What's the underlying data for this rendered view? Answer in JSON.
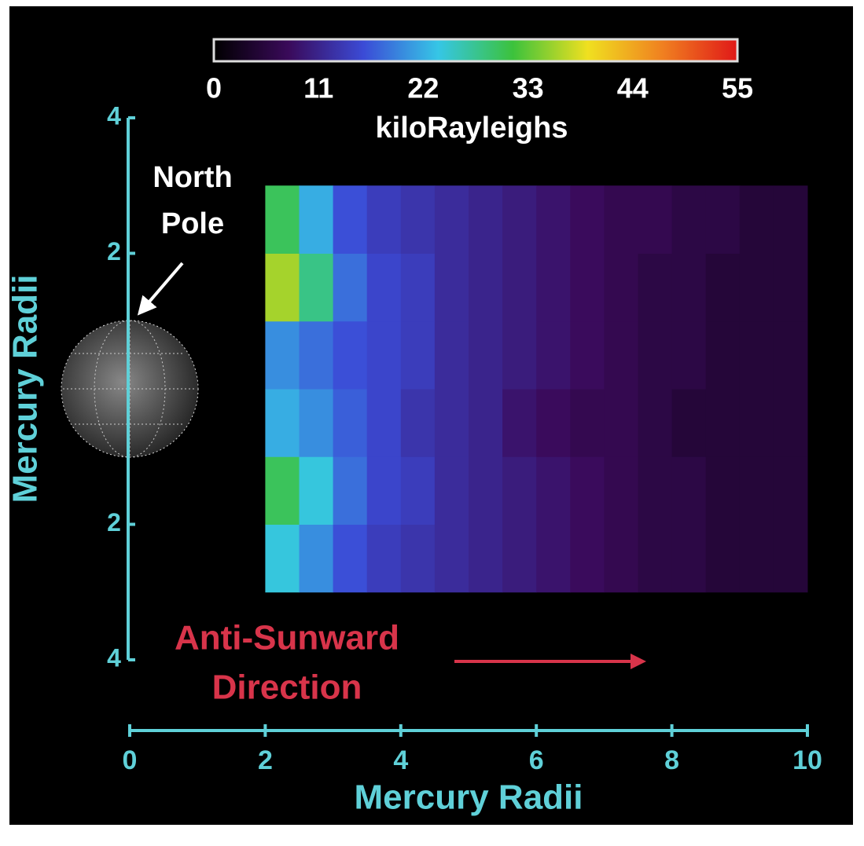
{
  "chart_data": {
    "type": "heatmap",
    "colorbar": {
      "label": "kiloRayleighs",
      "lim": [
        0,
        55
      ],
      "ticks": [
        0,
        11,
        22,
        33,
        44,
        55
      ],
      "colormap": [
        "#000000",
        "#3a0a5a",
        "#3b4bd6",
        "#36c6e6",
        "#3cc23c",
        "#f0e020",
        "#f08020",
        "#e01818"
      ]
    },
    "x_label": "Mercury Radii",
    "y_label": "Mercury Radii",
    "xlim": [
      0,
      10
    ],
    "xticks": [
      0,
      2,
      4,
      6,
      8,
      10
    ],
    "ylim": [
      -4,
      4
    ],
    "yticks": [
      {
        "value": -4,
        "label": "4"
      },
      {
        "value": -2,
        "label": "2"
      },
      2,
      4
    ],
    "x_bins": [
      2,
      2.5,
      3,
      3.5,
      4,
      4.5,
      5,
      5.5,
      6,
      6.5,
      7,
      7.5,
      8,
      8.5,
      9,
      9.5,
      10
    ],
    "y_bins": [
      -3,
      -2,
      -1,
      0,
      1,
      2,
      3
    ],
    "z": [
      [
        24,
        20,
        16,
        14,
        13,
        12,
        11,
        10,
        9,
        8,
        7,
        6,
        6,
        5,
        5,
        5
      ],
      [
        30,
        24,
        18,
        15,
        14,
        12,
        11,
        10,
        9,
        8,
        7,
        6,
        6,
        5,
        5,
        5
      ],
      [
        22,
        20,
        17,
        15,
        13,
        12,
        11,
        9,
        8,
        7,
        7,
        6,
        5,
        5,
        5,
        5
      ],
      [
        20,
        18,
        16,
        15,
        14,
        12,
        11,
        10,
        9,
        8,
        7,
        6,
        6,
        5,
        5,
        5
      ],
      [
        36,
        28,
        18,
        15,
        14,
        12,
        11,
        10,
        9,
        8,
        7,
        6,
        6,
        5,
        5,
        5
      ],
      [
        30,
        22,
        16,
        14,
        13,
        12,
        11,
        10,
        9,
        8,
        7,
        7,
        6,
        6,
        5,
        5
      ]
    ],
    "annotations": {
      "north_pole": [
        "North",
        "Pole"
      ],
      "direction": [
        "Anti-Sunward",
        "Direction"
      ]
    },
    "axis_color": "#5fd0d8",
    "direction_color": "#d8344a"
  }
}
